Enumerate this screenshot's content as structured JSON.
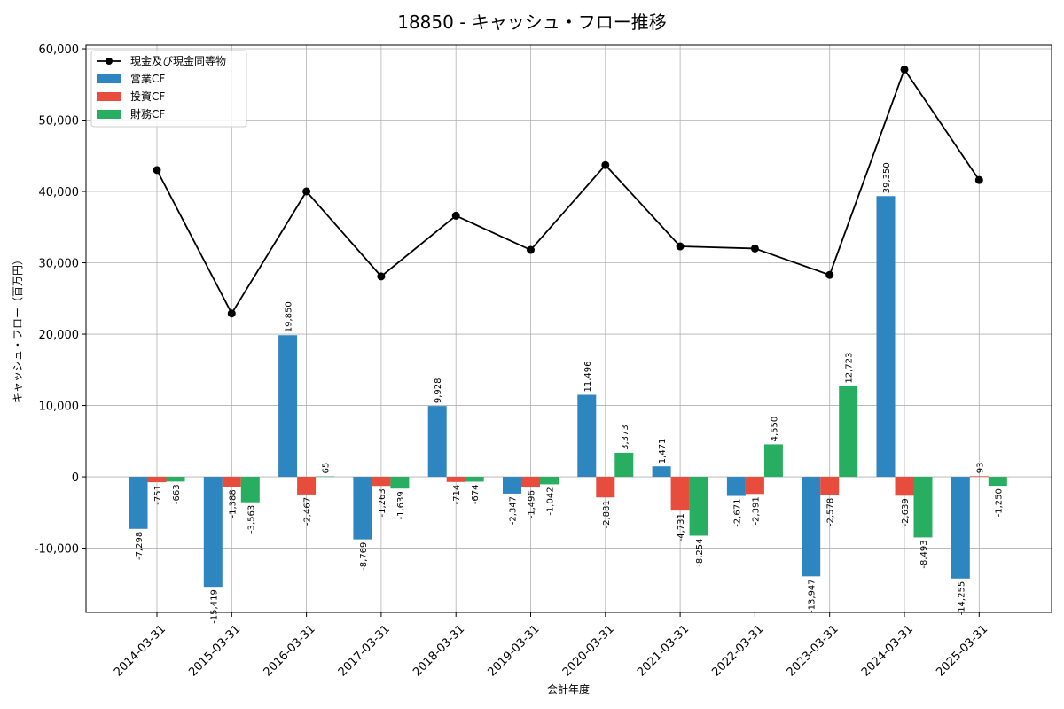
{
  "chart_data": {
    "type": "bar",
    "title": "18850 - キャッシュ・フロー推移",
    "xlabel": "会計年度",
    "ylabel": "キャッシュ・フロー（百万円）",
    "ylim": [
      -19000,
      60500
    ],
    "yticks": [
      -10000,
      0,
      10000,
      20000,
      30000,
      40000,
      50000,
      60000
    ],
    "ytick_labels": [
      "-10,000",
      "0",
      "10,000",
      "20,000",
      "30,000",
      "40,000",
      "50,000",
      "60,000"
    ],
    "grid": true,
    "legend_position": "top-left",
    "categories": [
      "2014-03-31",
      "2015-03-31",
      "2016-03-31",
      "2017-03-31",
      "2018-03-31",
      "2019-03-31",
      "2020-03-31",
      "2021-03-31",
      "2022-03-31",
      "2023-03-31",
      "2024-03-31",
      "2025-03-31"
    ],
    "series": [
      {
        "name": "営業CF",
        "kind": "bar",
        "color": "#2e86c1",
        "values": [
          -7298,
          -15419,
          19850,
          -8769,
          9928,
          -2347,
          11496,
          1471,
          -2671,
          -13947,
          39350,
          -14255
        ],
        "labels": [
          "-7,298",
          "-15,419",
          "19,850",
          "-8,769",
          "9,928",
          "-2,347",
          "11,496",
          "1,471",
          "-2,671",
          "-13,947",
          "39,350",
          "-14,255"
        ]
      },
      {
        "name": "投資CF",
        "kind": "bar",
        "color": "#e74c3c",
        "values": [
          -751,
          -1388,
          -2467,
          -1263,
          -714,
          -1496,
          -2881,
          -4731,
          -2391,
          -2578,
          -2639,
          93
        ],
        "labels": [
          "-751",
          "-1,388",
          "-2,467",
          "-1,263",
          "-714",
          "-1,496",
          "-2,881",
          "-4,731",
          "-2,391",
          "-2,578",
          "-2,639",
          "93"
        ]
      },
      {
        "name": "財務CF",
        "kind": "bar",
        "color": "#27ae60",
        "values": [
          -663,
          -3563,
          65,
          -1639,
          -674,
          -1042,
          3373,
          -8254,
          4550,
          12723,
          -8493,
          -1250
        ],
        "labels": [
          "-663",
          "-3,563",
          "65",
          "-1,639",
          "-674",
          "-1,042",
          "3,373",
          "-8,254",
          "4,550",
          "12,723",
          "-8,493",
          "-1,250"
        ]
      },
      {
        "name": "現金及び現金同等物",
        "kind": "line",
        "color": "#000000",
        "values": [
          43000,
          22900,
          40000,
          28100,
          36600,
          31800,
          43700,
          32300,
          32000,
          28300,
          57100,
          41600
        ]
      }
    ]
  }
}
